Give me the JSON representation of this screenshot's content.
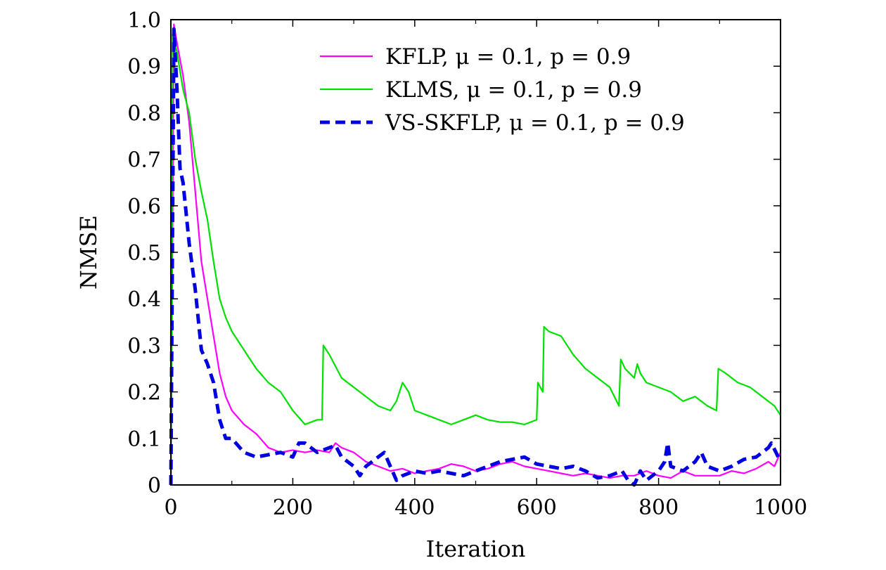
{
  "chart_data": {
    "type": "line",
    "title": "",
    "xlabel": "Iteration",
    "ylabel": "NMSE",
    "xlim": [
      0,
      1000
    ],
    "ylim": [
      0,
      1.0
    ],
    "xticks": [
      0,
      200,
      400,
      600,
      800,
      1000
    ],
    "xtick_labels": [
      "0",
      "200",
      "400",
      "600",
      "800",
      "1000"
    ],
    "yticks": [
      0,
      0.1,
      0.2,
      0.3,
      0.4,
      0.5,
      0.6,
      0.7,
      0.8,
      0.9,
      1.0
    ],
    "ytick_labels": [
      "0",
      "0.1",
      "0.2",
      "0.3",
      "0.4",
      "0.5",
      "0.6",
      "0.7",
      "0.8",
      "0.9",
      "1.0"
    ],
    "grid": false,
    "legend_position": "top-right",
    "series": [
      {
        "name": "KFLP, μ = 0.1, p = 0.9",
        "color": "#ff00ff",
        "style": "solid",
        "x": [
          0,
          5,
          10,
          20,
          30,
          40,
          50,
          60,
          70,
          80,
          90,
          100,
          120,
          140,
          160,
          180,
          200,
          220,
          240,
          260,
          270,
          280,
          300,
          320,
          340,
          360,
          380,
          400,
          420,
          440,
          460,
          480,
          500,
          520,
          540,
          560,
          580,
          600,
          620,
          640,
          660,
          680,
          700,
          720,
          740,
          760,
          780,
          800,
          820,
          840,
          860,
          880,
          900,
          920,
          940,
          960,
          980,
          990,
          1000
        ],
        "y": [
          0.0,
          0.99,
          0.95,
          0.88,
          0.78,
          0.63,
          0.48,
          0.4,
          0.32,
          0.24,
          0.19,
          0.16,
          0.13,
          0.11,
          0.08,
          0.07,
          0.075,
          0.07,
          0.075,
          0.07,
          0.09,
          0.08,
          0.07,
          0.05,
          0.04,
          0.03,
          0.035,
          0.025,
          0.03,
          0.035,
          0.045,
          0.04,
          0.03,
          0.035,
          0.045,
          0.05,
          0.04,
          0.035,
          0.03,
          0.025,
          0.02,
          0.025,
          0.02,
          0.015,
          0.02,
          0.02,
          0.03,
          0.02,
          0.015,
          0.03,
          0.02,
          0.02,
          0.02,
          0.03,
          0.025,
          0.035,
          0.05,
          0.04,
          0.07
        ]
      },
      {
        "name": "KLMS, μ = 0.1, p = 0.9",
        "color": "#00e000",
        "style": "solid",
        "x": [
          0,
          3,
          10,
          20,
          30,
          40,
          50,
          60,
          70,
          80,
          90,
          100,
          120,
          140,
          160,
          180,
          200,
          220,
          240,
          248,
          250,
          260,
          280,
          300,
          320,
          340,
          360,
          370,
          380,
          390,
          400,
          420,
          440,
          460,
          480,
          500,
          520,
          540,
          560,
          580,
          600,
          602,
          610,
          612,
          620,
          640,
          660,
          680,
          700,
          720,
          735,
          738,
          745,
          760,
          765,
          770,
          780,
          800,
          820,
          840,
          860,
          880,
          895,
          898,
          910,
          930,
          950,
          970,
          990,
          1000
        ],
        "y": [
          0.0,
          0.97,
          0.93,
          0.85,
          0.8,
          0.7,
          0.63,
          0.57,
          0.48,
          0.4,
          0.36,
          0.33,
          0.29,
          0.25,
          0.22,
          0.2,
          0.16,
          0.13,
          0.14,
          0.14,
          0.3,
          0.28,
          0.23,
          0.21,
          0.19,
          0.17,
          0.16,
          0.18,
          0.22,
          0.2,
          0.16,
          0.15,
          0.14,
          0.13,
          0.14,
          0.15,
          0.14,
          0.135,
          0.135,
          0.13,
          0.14,
          0.22,
          0.2,
          0.34,
          0.33,
          0.32,
          0.28,
          0.25,
          0.23,
          0.21,
          0.17,
          0.27,
          0.25,
          0.23,
          0.26,
          0.24,
          0.22,
          0.21,
          0.2,
          0.18,
          0.19,
          0.17,
          0.16,
          0.25,
          0.24,
          0.22,
          0.21,
          0.19,
          0.17,
          0.15
        ]
      },
      {
        "name": "VS-SKFLP, μ = 0.1, p = 0.9",
        "color": "#0000e0",
        "style": "dashed",
        "x": [
          0,
          5,
          10,
          15,
          20,
          30,
          40,
          50,
          60,
          70,
          80,
          90,
          100,
          120,
          140,
          160,
          180,
          200,
          210,
          220,
          240,
          260,
          270,
          280,
          300,
          310,
          320,
          340,
          350,
          360,
          370,
          380,
          400,
          420,
          440,
          460,
          480,
          500,
          520,
          540,
          560,
          580,
          600,
          620,
          640,
          660,
          680,
          700,
          720,
          740,
          750,
          760,
          770,
          780,
          800,
          810,
          815,
          820,
          840,
          860,
          870,
          880,
          900,
          920,
          940,
          960,
          980,
          985,
          1000
        ],
        "y": [
          0.0,
          0.98,
          0.85,
          0.68,
          0.65,
          0.52,
          0.42,
          0.29,
          0.26,
          0.22,
          0.14,
          0.1,
          0.1,
          0.07,
          0.06,
          0.065,
          0.07,
          0.06,
          0.09,
          0.09,
          0.07,
          0.08,
          0.085,
          0.06,
          0.04,
          0.02,
          0.04,
          0.06,
          0.07,
          0.04,
          0.01,
          0.02,
          0.03,
          0.025,
          0.03,
          0.025,
          0.02,
          0.03,
          0.04,
          0.05,
          0.055,
          0.06,
          0.045,
          0.04,
          0.035,
          0.04,
          0.03,
          0.015,
          0.02,
          0.03,
          0.01,
          0.0,
          0.03,
          0.01,
          0.03,
          0.05,
          0.09,
          0.04,
          0.03,
          0.05,
          0.07,
          0.04,
          0.03,
          0.04,
          0.055,
          0.06,
          0.08,
          0.09,
          0.05
        ]
      }
    ]
  }
}
